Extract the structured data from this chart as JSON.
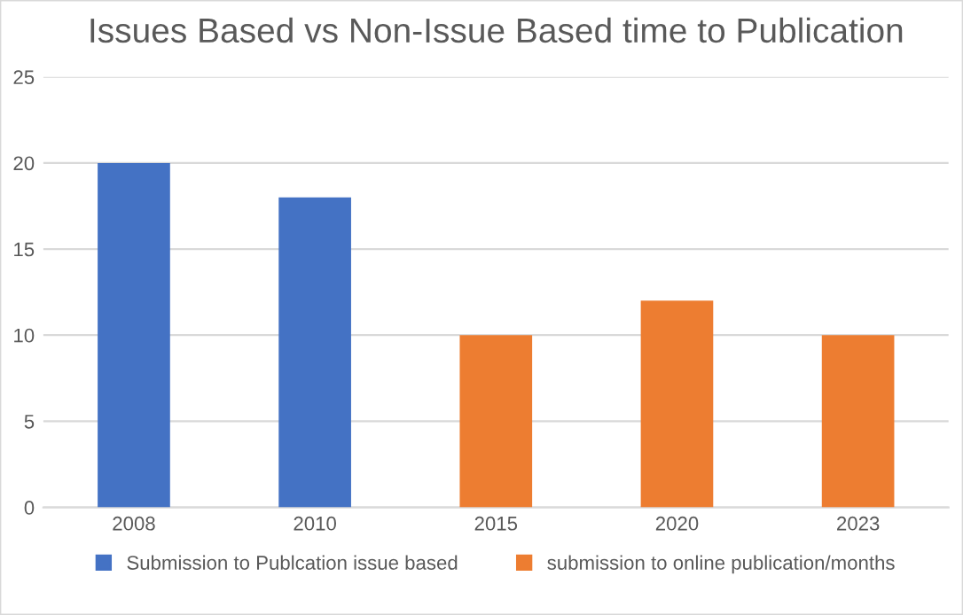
{
  "chart_data": {
    "type": "bar",
    "title": "Issues Based vs Non-Issue Based time to Publication",
    "categories": [
      "2008",
      "2010",
      "2015",
      "2020",
      "2023"
    ],
    "series": [
      {
        "name": "Submission to Publcation issue based",
        "color": "#4472c4",
        "values": [
          20,
          18,
          null,
          null,
          null
        ]
      },
      {
        "name": "submission to online publication/months",
        "color": "#ed7d31",
        "values": [
          null,
          null,
          10,
          12,
          10
        ]
      }
    ],
    "ylim": [
      0,
      25
    ],
    "yticks": [
      0,
      5,
      10,
      15,
      20,
      25
    ],
    "grid": "y",
    "legend": "bottom"
  }
}
